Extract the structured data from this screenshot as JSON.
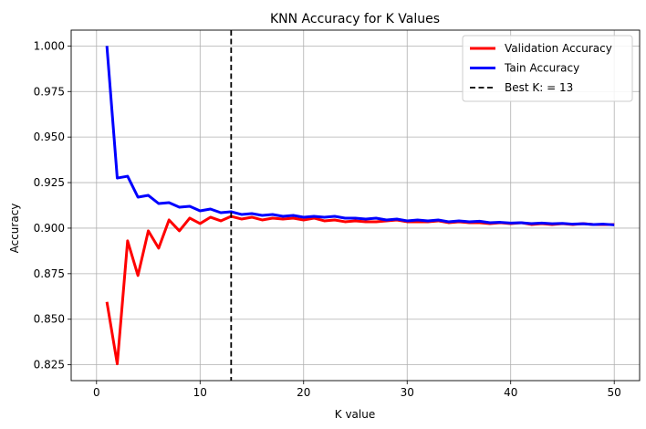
{
  "chart_data": {
    "type": "line",
    "title": "KNN Accuracy for K Values",
    "xlabel": "K value",
    "ylabel": "Accuracy",
    "xlim": [
      -2.45,
      52.45
    ],
    "ylim": [
      0.8163,
      1.0087
    ],
    "xticks": [
      0,
      10,
      20,
      30,
      40,
      50
    ],
    "yticks": [
      0.825,
      0.85,
      0.875,
      0.9,
      0.925,
      0.95,
      0.975,
      1.0
    ],
    "ytick_labels": [
      "0.825",
      "0.850",
      "0.875",
      "0.900",
      "0.925",
      "0.950",
      "0.975",
      "1.000"
    ],
    "grid": true,
    "legend_position": "top-right",
    "x": [
      1,
      2,
      3,
      4,
      5,
      6,
      7,
      8,
      9,
      10,
      11,
      12,
      13,
      14,
      15,
      16,
      17,
      18,
      19,
      20,
      21,
      22,
      23,
      24,
      25,
      26,
      27,
      28,
      29,
      30,
      31,
      32,
      33,
      34,
      35,
      36,
      37,
      38,
      39,
      40,
      41,
      42,
      43,
      44,
      45,
      46,
      47,
      48,
      49,
      50
    ],
    "series": [
      {
        "name": "Validation Accuracy",
        "color": "#ff0000",
        "values": [
          0.8595,
          0.8255,
          0.893,
          0.874,
          0.8985,
          0.889,
          0.9045,
          0.8985,
          0.9055,
          0.9025,
          0.906,
          0.904,
          0.9065,
          0.905,
          0.906,
          0.9045,
          0.9055,
          0.905,
          0.9055,
          0.9045,
          0.9055,
          0.904,
          0.9045,
          0.9035,
          0.904,
          0.9035,
          0.9035,
          0.904,
          0.9045,
          0.9035,
          0.9035,
          0.9035,
          0.904,
          0.903,
          0.9035,
          0.903,
          0.903,
          0.9025,
          0.903,
          0.9025,
          0.903,
          0.902,
          0.9025,
          0.902,
          0.9025,
          0.902,
          0.9025,
          0.902,
          0.902,
          0.902
        ]
      },
      {
        "name": "Tain Accuracy",
        "color": "#0000ff",
        "values": [
          1.0,
          0.9275,
          0.9285,
          0.917,
          0.918,
          0.9135,
          0.914,
          0.9115,
          0.912,
          0.9095,
          0.9105,
          0.9085,
          0.909,
          0.9075,
          0.908,
          0.907,
          0.9075,
          0.9065,
          0.907,
          0.906,
          0.9065,
          0.906,
          0.9065,
          0.9055,
          0.9055,
          0.905,
          0.9055,
          0.9045,
          0.905,
          0.904,
          0.9045,
          0.904,
          0.9045,
          0.9035,
          0.904,
          0.9035,
          0.9038,
          0.903,
          0.9032,
          0.9028,
          0.903,
          0.9025,
          0.9028,
          0.9024,
          0.9026,
          0.9022,
          0.9024,
          0.902,
          0.9022,
          0.9018
        ]
      }
    ],
    "best_k": {
      "label": "Best K: = 13",
      "x": 13,
      "color": "#000000"
    }
  }
}
